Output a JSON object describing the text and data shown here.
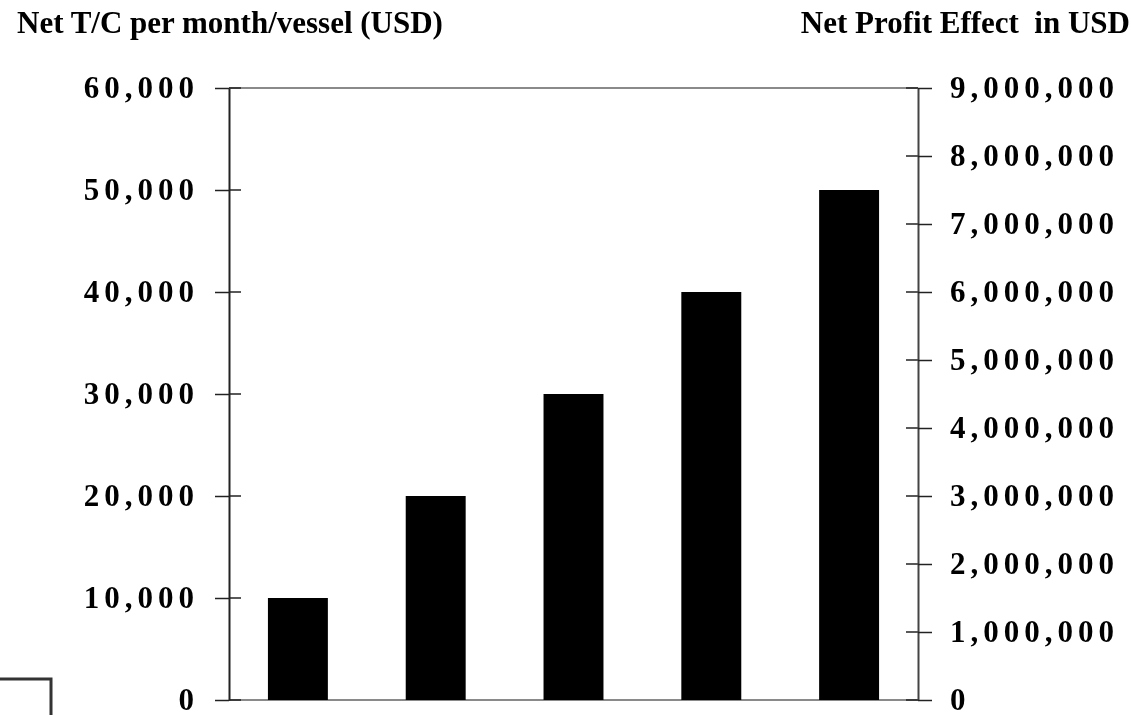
{
  "chart_data": {
    "type": "bar",
    "ylabel": "Net T/C per month/vessel (USD)",
    "y2label": "Net Profit Effect  in USD",
    "categories": [
      null,
      null,
      null,
      null,
      null
    ],
    "values": [
      10000,
      20000,
      30000,
      40000,
      50000
    ],
    "color": "#000000",
    "ylim": [
      0,
      60000
    ],
    "yticks": [
      0,
      {
        "value": 10000,
        "label": "10,000"
      },
      {
        "value": 20000,
        "label": "20,000"
      },
      {
        "value": 30000,
        "label": "30,000"
      },
      {
        "value": 40000,
        "label": "40,000"
      },
      {
        "value": 50000,
        "label": "50,000"
      },
      {
        "value": 60000,
        "label": "60,000"
      }
    ],
    "y2lim": [
      0,
      9000000
    ],
    "y2ticks": [
      0,
      {
        "value": 1000000,
        "label": "1,000,000"
      },
      {
        "value": 2000000,
        "label": "2,000,000"
      },
      {
        "value": 3000000,
        "label": "3,000,000"
      },
      {
        "value": 4000000,
        "label": "4,000,000"
      },
      {
        "value": 5000000,
        "label": "5,000,000"
      },
      {
        "value": 6000000,
        "label": "6,000,000"
      },
      {
        "value": 7000000,
        "label": "7,000,000"
      },
      {
        "value": 8000000,
        "label": "8,000,000"
      },
      {
        "value": 9000000,
        "label": "9,000,000"
      }
    ]
  }
}
